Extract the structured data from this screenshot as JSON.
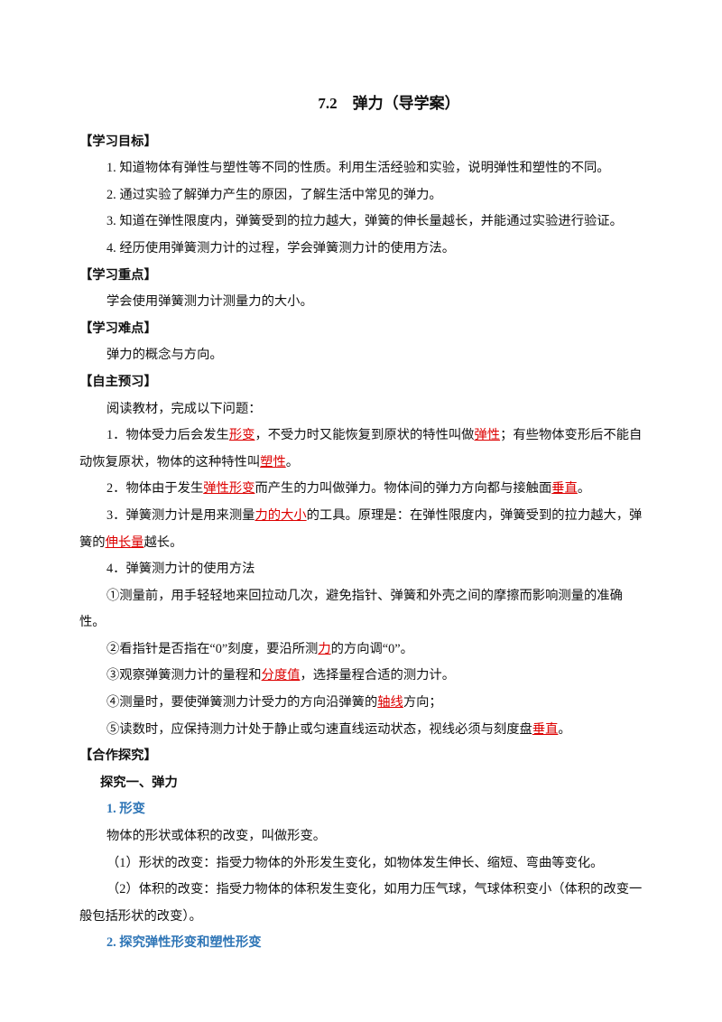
{
  "title": "7.2　弹力（导学案）",
  "sections": [
    {
      "heading": "【学习目标】",
      "paragraphs": [
        [
          "1. 知道物体有弹性与塑性等不同的性质。利用生活经验和实验，说明弹性和塑性的不同。"
        ],
        [
          "2. 通过实验了解弹力产生的原因，了解生活中常见的弹力。"
        ],
        [
          "3. 知道在弹性限度内，弹簧受到的拉力越大，弹簧的伸长量越长，并能通过实验进行验证。"
        ],
        [
          "4. 经历使用弹簧测力计的过程，学会弹簧测力计的使用方法。"
        ]
      ]
    },
    {
      "heading": "【学习重点】",
      "paragraphs": [
        [
          "学会使用弹簧测力计测量力的大小。"
        ]
      ]
    },
    {
      "heading": "【学习难点】",
      "paragraphs": [
        [
          "弹力的概念与方向。"
        ]
      ]
    },
    {
      "heading": "【自主预习】",
      "paragraphs": [
        [
          "阅读教材，完成以下问题："
        ],
        [
          "1．物体受力后会发生",
          "形变",
          "，不受力时又能恢复到原状的特性叫做",
          "弹性",
          "；有些物体变形后不能自动恢复原状，物体的这种特性叫",
          "塑性",
          "。"
        ],
        [
          "2．物体由于发生",
          "弹性形变",
          "而产生的力叫做弹力。物体间的弹力方向都与接触面",
          "垂直",
          "。"
        ],
        [
          "3．弹簧测力计是用来测量",
          "力的大小",
          "的工具。原理是：在弹性限度内，弹簧受到的拉力越大，弹簧的",
          "伸长量",
          "越长。"
        ],
        [
          "4．弹簧测力计的使用方法"
        ],
        [
          "①测量前，用手轻轻地来回拉动几次，避免指针、弹簧和外壳之间的摩擦而影响测量的准确性。"
        ],
        [
          "②看指针是否指在“0”刻度，要沿所测",
          "力",
          "的方向调“0”。"
        ],
        [
          "③观察弹簧测力计的量程和",
          "分度值",
          "，选择量程合适的测力计。"
        ],
        [
          "④测量时，要使弹簧测力计受力的方向沿弹簧的",
          "轴线",
          "方向；"
        ],
        [
          "⑤读数时，应保持测力计处于静止或匀速直线运动状态，视线必须与刻度盘",
          "垂直",
          "。"
        ]
      ]
    },
    {
      "heading": "【合作探究】",
      "subheading": "探究一、弹力",
      "topics": [
        {
          "heading": "1. 形变",
          "paragraphs": [
            [
              "物体的形状或体积的改变，叫做形变。"
            ],
            [
              "（1）形状的改变：指受力物体的外形发生变化，如物体发生伸长、缩短、弯曲等变化。"
            ],
            [
              "（2）体积的改变：指受力物体的体积发生变化，如用力压气球，气球体积变小（体积的改变一般包括形状的改变）。"
            ]
          ]
        },
        {
          "heading": "2. 探究弹性形变和塑性形变"
        }
      ]
    }
  ]
}
